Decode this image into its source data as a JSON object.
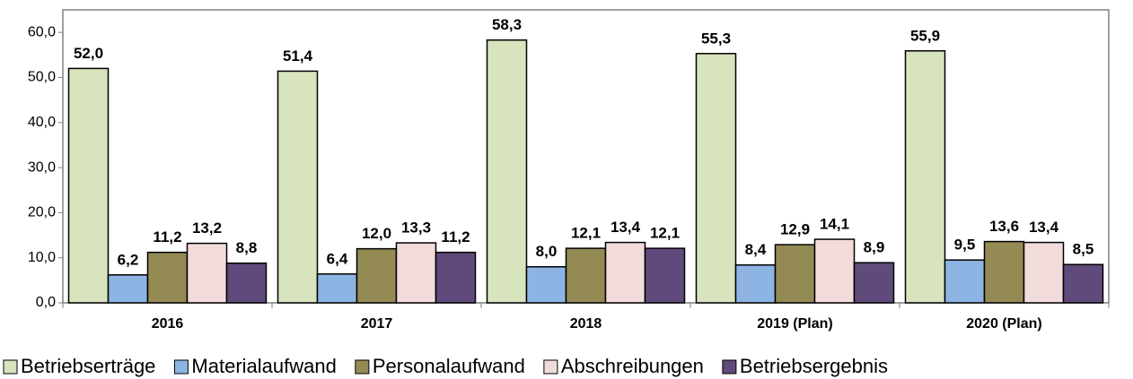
{
  "chart_data": {
    "type": "bar",
    "categories": [
      "2016",
      "2017",
      "2018",
      "2019 (Plan)",
      "2020 (Plan)"
    ],
    "series": [
      {
        "name": "Betriebserträge",
        "color": "#d7e4bd",
        "values": [
          52.0,
          51.4,
          58.3,
          55.3,
          55.9
        ],
        "value_labels": [
          "52,0",
          "51,4",
          "58,3",
          "55,3",
          "55,9"
        ]
      },
      {
        "name": "Materialaufwand",
        "color": "#8db4e2",
        "values": [
          6.2,
          6.4,
          8.0,
          8.4,
          9.5
        ],
        "value_labels": [
          "6,2",
          "6,4",
          "8,0",
          "8,4",
          "9,5"
        ]
      },
      {
        "name": "Personalaufwand",
        "color": "#948a54",
        "values": [
          11.2,
          12.0,
          12.1,
          12.9,
          13.6
        ],
        "value_labels": [
          "11,2",
          "12,0",
          "12,1",
          "12,9",
          "13,6"
        ]
      },
      {
        "name": "Abschreibungen",
        "color": "#f2dcdb",
        "values": [
          13.2,
          13.3,
          13.4,
          14.1,
          13.4
        ],
        "value_labels": [
          "13,2",
          "13,3",
          "13,4",
          "14,1",
          "13,4"
        ]
      },
      {
        "name": "Betriebsergebnis",
        "color": "#604a7b",
        "values": [
          8.8,
          11.2,
          12.1,
          8.9,
          8.5
        ],
        "value_labels": [
          "8,8",
          "11,2",
          "12,1",
          "8,9",
          "8,5"
        ]
      }
    ],
    "ylim": [
      0,
      65
    ],
    "yticks": [
      {
        "value": 0,
        "label": "0,0"
      },
      {
        "value": 10,
        "label": "10,0"
      },
      {
        "value": 20,
        "label": "20,0"
      },
      {
        "value": 30,
        "label": "30,0"
      },
      {
        "value": 40,
        "label": "40,0"
      },
      {
        "value": 50,
        "label": "50,0"
      },
      {
        "value": 60,
        "label": "60,0"
      }
    ],
    "grid": false,
    "legend": "bottom"
  }
}
